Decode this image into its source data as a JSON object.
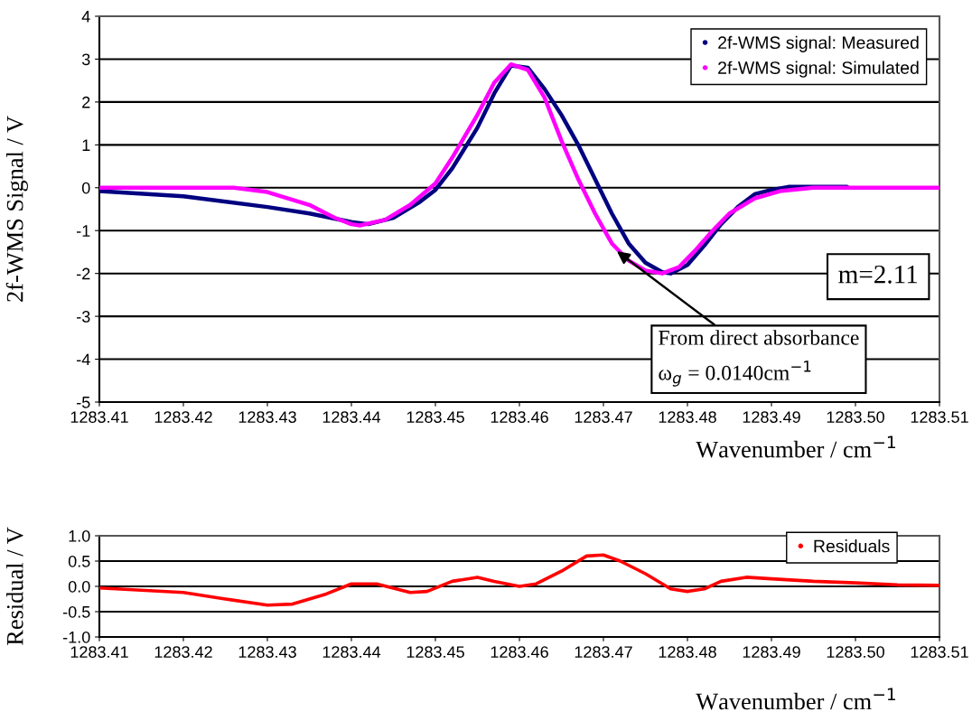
{
  "chart_data": [
    {
      "type": "line",
      "ylabel": "2f-WMS Signal / V",
      "xlabel": "Wavenumber / cm$^{−1}$",
      "xlim": [
        1283.41,
        1283.51
      ],
      "ylim": [
        -5,
        4
      ],
      "xticks": [
        1283.41,
        1283.42,
        1283.43,
        1283.44,
        1283.45,
        1283.46,
        1283.47,
        1283.48,
        1283.49,
        {
          "value": 1283.5,
          "label": "1283.50"
        },
        1283.51
      ],
      "yticks": [
        -5,
        -4,
        -3,
        -2,
        -1,
        0,
        1,
        2,
        3,
        4
      ],
      "grid": "y",
      "legend": "top right",
      "series": [
        {
          "name": "2f-WMS signal: Measured",
          "color": "#000080",
          "x": [
            1283.41,
            1283.42,
            1283.43,
            1283.435,
            1283.44,
            1283.442,
            1283.445,
            1283.448,
            1283.45,
            1283.452,
            1283.455,
            1283.457,
            1283.459,
            1283.461,
            1283.463,
            1283.465,
            1283.467,
            1283.469,
            1283.471,
            1283.473,
            1283.475,
            1283.477,
            1283.478,
            1283.48,
            1283.482,
            1283.484,
            1283.486,
            1283.488,
            1283.49,
            1283.492,
            1283.499
          ],
          "values": [
            -0.08,
            -0.2,
            -0.45,
            -0.6,
            -0.8,
            -0.85,
            -0.7,
            -0.35,
            -0.05,
            0.45,
            1.4,
            2.2,
            2.85,
            2.8,
            2.3,
            1.7,
            1.0,
            0.2,
            -0.6,
            -1.3,
            -1.75,
            -1.97,
            -2.0,
            -1.8,
            -1.35,
            -0.85,
            -0.45,
            -0.15,
            -0.05,
            0.02,
            0.02
          ]
        },
        {
          "name": "2f-WMS signal: Simulated",
          "color": "#ff00ff",
          "x": [
            1283.41,
            1283.426,
            1283.43,
            1283.435,
            1283.438,
            1283.44,
            1283.441,
            1283.444,
            1283.447,
            1283.45,
            1283.452,
            1283.455,
            1283.457,
            1283.459,
            1283.461,
            1283.463,
            1283.465,
            1283.467,
            1283.469,
            1283.471,
            1283.473,
            1283.475,
            1283.477,
            1283.479,
            1283.481,
            1283.483,
            1283.485,
            1283.488,
            1283.491,
            1283.495,
            1283.51
          ],
          "values": [
            0,
            0,
            -0.1,
            -0.4,
            -0.7,
            -0.85,
            -0.88,
            -0.75,
            -0.4,
            0.1,
            0.7,
            1.7,
            2.45,
            2.88,
            2.75,
            2.1,
            1.1,
            0.2,
            -0.6,
            -1.3,
            -1.7,
            -1.93,
            -2.0,
            -1.85,
            -1.45,
            -1.0,
            -0.6,
            -0.25,
            -0.08,
            0,
            0
          ]
        }
      ],
      "annotations": [
        "m=2.11",
        {
          "text": "From direct absorbance\nω$_{g}$ = 0.0140cm$^{−1}$",
          "x": 1283.4716,
          "y": -1.48
        }
      ]
    },
    {
      "type": "line",
      "ylabel": "Residual / V",
      "xlabel": "Wavenumber / cm$^{−1}$",
      "xlim": [
        1283.41,
        1283.51
      ],
      "ylim": [
        -1,
        1
      ],
      "xticks": [
        1283.41,
        1283.42,
        1283.43,
        1283.44,
        1283.45,
        1283.46,
        1283.47,
        1283.48,
        1283.49,
        {
          "value": 1283.5,
          "label": "1283.50"
        },
        1283.51
      ],
      "yticks": [
        {
          "value": -1,
          "label": "-1.0"
        },
        {
          "value": -0.5,
          "label": "-0.5"
        },
        {
          "value": 0,
          "label": "0.0"
        },
        {
          "value": 0.5,
          "label": "0.5"
        },
        {
          "value": 1,
          "label": "1.0"
        }
      ],
      "grid": "y",
      "legend": "top right",
      "series": [
        {
          "name": "Residuals",
          "color": "#ff0000",
          "x": [
            1283.41,
            1283.42,
            1283.425,
            1283.43,
            1283.433,
            1283.437,
            1283.44,
            1283.443,
            1283.447,
            1283.449,
            1283.452,
            1283.455,
            1283.457,
            1283.46,
            1283.462,
            1283.465,
            1283.468,
            1283.47,
            1283.472,
            1283.475,
            1283.478,
            1283.48,
            1283.482,
            1283.484,
            1283.487,
            1283.49,
            1283.495,
            1283.5,
            1283.505,
            1283.51
          ],
          "values": [
            -0.03,
            -0.12,
            -0.25,
            -0.37,
            -0.35,
            -0.15,
            0.05,
            0.05,
            -0.12,
            -0.1,
            0.1,
            0.18,
            0.1,
            0.0,
            0.05,
            0.3,
            0.6,
            0.62,
            0.5,
            0.25,
            -0.05,
            -0.1,
            -0.05,
            0.1,
            0.18,
            0.15,
            0.1,
            0.07,
            0.03,
            0.02
          ]
        }
      ]
    }
  ]
}
